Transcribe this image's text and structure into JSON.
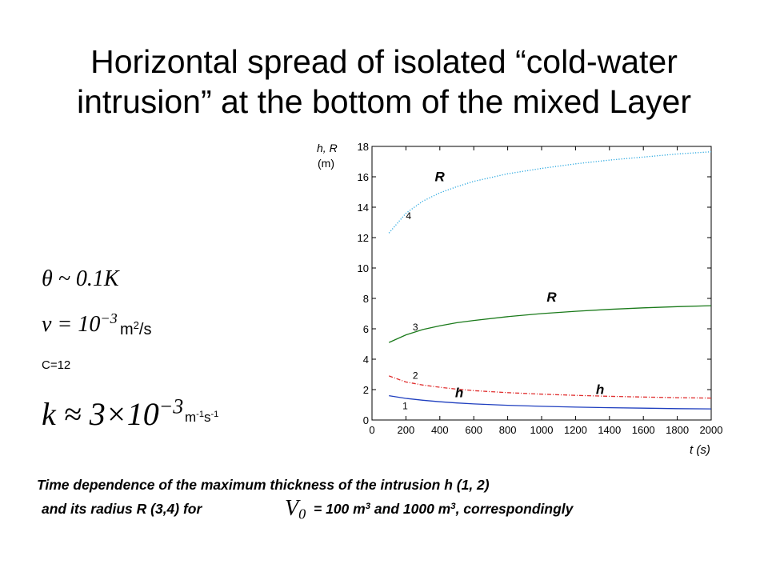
{
  "title": {
    "line1": "Horizontal spread of isolated “cold-water",
    "line2": "intrusion” at the bottom of the mixed Layer"
  },
  "params": {
    "theta": {
      "formula": "θ ~ 0.1K"
    },
    "nu": {
      "formula_base": "ν = 10",
      "formula_exp": "−3",
      "unit_base": "m",
      "unit_exp": "2",
      "unit_tail": "/s"
    },
    "c": {
      "text": "C=12"
    },
    "k": {
      "formula_base": "k ≈ 3×10",
      "formula_exp": "−3",
      "unit_m": "m",
      "unit_m_exp": "-1",
      "unit_s": "s",
      "unit_s_exp": "-1"
    }
  },
  "caption": {
    "line1": "Time dependence of the maximum thickness of the intrusion h (1, 2)",
    "line2_a": "and its radius R (3,4) for",
    "v0_base": "V",
    "v0_sub": "0",
    "line2_b": "= 100 m",
    "exp1": "3",
    "line2_c": " and 1000 m",
    "exp2": "3",
    "line2_d": ",  correspondingly"
  },
  "chart_data": {
    "type": "line",
    "xlabel": "t (s)",
    "ylabel_line1": "h, R",
    "ylabel_line2": "(m)",
    "xlim": [
      0,
      2000
    ],
    "ylim": [
      0,
      18
    ],
    "x_ticks": [
      "0",
      "200",
      "400",
      "600",
      "800",
      "1000",
      "1200",
      "1400",
      "1600",
      "1800",
      "2000"
    ],
    "y_ticks": [
      "0",
      "2",
      "4",
      "6",
      "8",
      "10",
      "12",
      "14",
      "16",
      "18"
    ],
    "grid": false,
    "series": [
      {
        "id": "1",
        "color": "#1f3fbf",
        "style": "solid",
        "x": [
          100,
          200,
          300,
          400,
          500,
          600,
          800,
          1000,
          1200,
          1400,
          1600,
          1800,
          2000
        ],
        "y": [
          1.6,
          1.42,
          1.3,
          1.2,
          1.12,
          1.06,
          0.97,
          0.9,
          0.85,
          0.81,
          0.78,
          0.75,
          0.73
        ]
      },
      {
        "id": "2",
        "color": "#e03030",
        "style": "dashdot",
        "x": [
          100,
          200,
          300,
          400,
          500,
          600,
          800,
          1000,
          1200,
          1400,
          1600,
          1800,
          2000
        ],
        "y": [
          2.9,
          2.5,
          2.3,
          2.15,
          2.03,
          1.93,
          1.8,
          1.7,
          1.62,
          1.56,
          1.51,
          1.47,
          1.44
        ]
      },
      {
        "id": "3",
        "color": "#1a7a1a",
        "style": "solid",
        "x": [
          100,
          200,
          300,
          400,
          500,
          600,
          800,
          1000,
          1200,
          1400,
          1600,
          1800,
          2000
        ],
        "y": [
          5.1,
          5.6,
          5.95,
          6.2,
          6.4,
          6.55,
          6.8,
          7.0,
          7.15,
          7.28,
          7.38,
          7.46,
          7.52
        ]
      },
      {
        "id": "4",
        "color": "#2aa8e0",
        "style": "dotted",
        "x": [
          100,
          200,
          300,
          400,
          500,
          600,
          800,
          1000,
          1200,
          1400,
          1600,
          1800,
          2000
        ],
        "y": [
          12.3,
          13.6,
          14.4,
          14.95,
          15.35,
          15.7,
          16.2,
          16.55,
          16.85,
          17.1,
          17.3,
          17.5,
          17.65
        ]
      }
    ],
    "annotations": [
      {
        "text": "R",
        "x": 370,
        "y": 15.7,
        "bold": true,
        "italic": true
      },
      {
        "text": "R",
        "x": 1030,
        "y": 7.8,
        "bold": true,
        "italic": true
      },
      {
        "text": "h",
        "x": 490,
        "y": 1.5,
        "bold": true,
        "italic": true
      },
      {
        "text": "h",
        "x": 1320,
        "y": 1.7,
        "bold": true,
        "italic": true
      },
      {
        "text": "4",
        "x": 200,
        "y": 13.2,
        "bold": false,
        "italic": false
      },
      {
        "text": "3",
        "x": 240,
        "y": 5.9,
        "bold": false,
        "italic": false
      },
      {
        "text": "2",
        "x": 240,
        "y": 2.7,
        "bold": false,
        "italic": false
      },
      {
        "text": "1",
        "x": 180,
        "y": 0.7,
        "bold": false,
        "italic": false
      }
    ]
  }
}
